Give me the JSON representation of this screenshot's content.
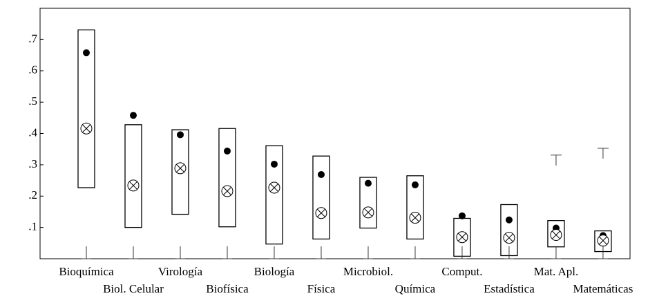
{
  "chart_data": {
    "type": "box",
    "categories": [
      "Bioquímica",
      "Biol. Celular",
      "Virología",
      "Biofísica",
      "Biología",
      "Física",
      "Microbiol.",
      "Química",
      "Comput.",
      "Estadística",
      "Mat. Apl.",
      "Matemáticas"
    ],
    "box_high": [
      0.731,
      0.428,
      0.412,
      0.416,
      0.361,
      0.328,
      0.26,
      0.265,
      0.129,
      0.173,
      0.122,
      0.089
    ],
    "box_low": [
      0.227,
      0.1,
      0.142,
      0.102,
      0.047,
      0.063,
      0.098,
      0.063,
      0.008,
      0.01,
      0.038,
      0.023
    ],
    "mean": [
      0.658,
      0.458,
      0.396,
      0.344,
      0.302,
      0.269,
      0.241,
      0.236,
      0.137,
      0.124,
      0.098,
      0.074
    ],
    "median": [
      0.416,
      0.234,
      0.289,
      0.216,
      0.227,
      0.146,
      0.148,
      0.131,
      0.069,
      0.067,
      0.076,
      0.058
    ],
    "whisker_low": [
      0,
      0,
      0,
      0,
      0,
      0,
      0,
      0,
      0,
      0,
      0,
      0
    ],
    "whisker_high": [
      null,
      null,
      null,
      null,
      null,
      null,
      null,
      null,
      null,
      null,
      0.331,
      0.353
    ],
    "ylim": [
      0,
      0.8
    ],
    "yticks": [
      {
        "value": 0.1,
        "label": ".1"
      },
      {
        "value": 0.2,
        "label": ".2"
      },
      {
        "value": 0.3,
        "label": ".3"
      },
      {
        "value": 0.4,
        "label": ".4"
      },
      {
        "value": 0.5,
        "label": ".5"
      },
      {
        "value": 0.6,
        "label": ".6"
      },
      {
        "value": 0.7,
        "label": ".7"
      }
    ],
    "color": "#000000"
  }
}
